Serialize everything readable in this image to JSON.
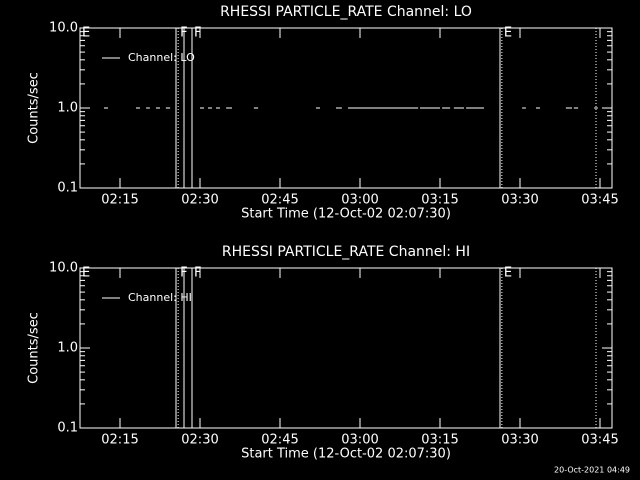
{
  "footer": "20-Oct-2021 04:49",
  "chart_data": [
    {
      "type": "line",
      "title": "RHESSI PARTICLE_RATE Channel: LO",
      "y_label": "Counts/sec",
      "x_label": "Start Time (12-Oct-02 02:07:30)",
      "log_y": true,
      "ylim": [
        0.1,
        10
      ],
      "yticks": [
        {
          "value": 10,
          "label": "10.0"
        },
        {
          "value": 1,
          "label": "1.0"
        },
        0.1
      ],
      "xlim": [
        127.5,
        227.25
      ],
      "xticks": [
        {
          "value": 135,
          "label": "02:15"
        },
        {
          "value": 150,
          "label": "02:30"
        },
        {
          "value": 165,
          "label": "02:45"
        },
        {
          "value": 180,
          "label": "03:00"
        },
        {
          "value": 195,
          "label": "03:15"
        },
        {
          "value": 210,
          "label": "03:30"
        },
        {
          "value": 225,
          "label": "03:45"
        }
      ],
      "legend": "upper left",
      "series": [
        {
          "name": "Channel: LO",
          "color": "#ffffff",
          "x": [
            132,
            132.75,
            null,
            138,
            138.75,
            null,
            139.9,
            140.6,
            null,
            141.75,
            142.5,
            null,
            143.6,
            144.4,
            null,
            150,
            150.75,
            null,
            151.5,
            152.25,
            null,
            153,
            153.75,
            null,
            154.9,
            156,
            null,
            160.1,
            160.9,
            null,
            171.75,
            172.5,
            null,
            175.5,
            176.6,
            null,
            177.75,
            190.9,
            null,
            191.25,
            195,
            null,
            195.4,
            196.9,
            null,
            197.6,
            199.5,
            null,
            199.9,
            203.25,
            null,
            210.4,
            211.1,
            null,
            213,
            213.75,
            null,
            218.6,
            219.75,
            null,
            220.1,
            220.9,
            null,
            223.9,
            224.6
          ],
          "values": [
            1,
            1,
            null,
            1,
            1,
            null,
            1,
            1,
            null,
            1,
            1,
            null,
            1,
            1,
            null,
            1,
            1,
            null,
            1,
            1,
            null,
            1,
            1,
            null,
            1,
            1,
            null,
            1,
            1,
            null,
            1,
            1,
            null,
            1,
            1,
            null,
            1,
            1,
            null,
            1,
            1,
            null,
            1,
            1,
            null,
            1,
            1,
            null,
            1,
            1,
            null,
            1,
            1,
            null,
            1,
            1,
            null,
            1,
            1,
            null,
            1,
            1,
            null,
            1,
            1
          ]
        }
      ],
      "markers": [
        {
          "x": 127.5,
          "style": "solid",
          "label": "E"
        },
        {
          "x": 145.5,
          "style": "solid"
        },
        {
          "x": 145.9,
          "style": "dotted",
          "label": "F"
        },
        {
          "x": 147,
          "style": "solid"
        },
        {
          "x": 148.5,
          "style": "solid",
          "label": "F"
        },
        {
          "x": 206.25,
          "style": "solid"
        },
        {
          "x": 206.6,
          "style": "dotted",
          "label": "E"
        },
        {
          "x": 224.25,
          "style": "dotted"
        }
      ]
    },
    {
      "type": "line",
      "title": "RHESSI PARTICLE_RATE Channel: HI",
      "y_label": "Counts/sec",
      "x_label": "Start Time (12-Oct-02 02:07:30)",
      "log_y": true,
      "ylim": [
        0.1,
        10
      ],
      "yticks": [
        {
          "value": 10,
          "label": "10.0"
        },
        {
          "value": 1,
          "label": "1.0"
        },
        0.1
      ],
      "xlim": [
        127.5,
        227.25
      ],
      "xticks": [
        {
          "value": 135,
          "label": "02:15"
        },
        {
          "value": 150,
          "label": "02:30"
        },
        {
          "value": 165,
          "label": "02:45"
        },
        {
          "value": 180,
          "label": "03:00"
        },
        {
          "value": 195,
          "label": "03:15"
        },
        {
          "value": 210,
          "label": "03:30"
        },
        {
          "value": 225,
          "label": "03:45"
        }
      ],
      "legend": "upper left",
      "series": [
        {
          "name": "Channel: HI",
          "color": "#ffffff",
          "x": [],
          "values": []
        }
      ],
      "markers": [
        {
          "x": 127.5,
          "style": "solid",
          "label": "E"
        },
        {
          "x": 145.5,
          "style": "solid"
        },
        {
          "x": 145.9,
          "style": "dotted",
          "label": "F"
        },
        {
          "x": 147,
          "style": "solid"
        },
        {
          "x": 148.5,
          "style": "solid",
          "label": "F"
        },
        {
          "x": 206.25,
          "style": "solid"
        },
        {
          "x": 206.6,
          "style": "dotted",
          "label": "E"
        },
        {
          "x": 224.25,
          "style": "dotted"
        }
      ]
    }
  ]
}
